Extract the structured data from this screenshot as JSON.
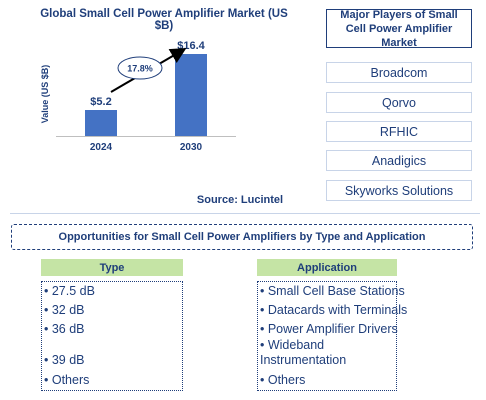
{
  "chart_data": {
    "type": "bar",
    "title": "Global Small Cell Power Amplifier Market (US $B)",
    "ylabel": "Value (US $B)",
    "categories": [
      "2024",
      "2030"
    ],
    "values": [
      5.2,
      16.4
    ],
    "value_labels": [
      "$5.2",
      "$16.4"
    ],
    "ylim": [
      0,
      20
    ],
    "bar_color": "#4472c4",
    "cagr_label": "17.8%",
    "source": "Source: Lucintel",
    "grid": false
  },
  "players": {
    "header": "Major Players of Small Cell Power Amplifier Market",
    "items": [
      "Broadcom",
      "Qorvo",
      "RFHIC",
      "Anadigics",
      "Skyworks Solutions"
    ]
  },
  "opportunities": {
    "header": "Opportunities for Small Cell Power Amplifiers by Type and Application",
    "type": {
      "header": "Type",
      "items": [
        "• 27.5 dB",
        "• 32 dB",
        "• 36 dB",
        "• 39 dB",
        "• Others"
      ]
    },
    "application": {
      "header": "Application",
      "items": [
        "• Small Cell Base Stations",
        "• Datacards with Terminals",
        "• Power Amplifier Drivers",
        "• Wideband Instrumentation",
        "• Others"
      ]
    }
  },
  "colors": {
    "brand": "#1f3e7a",
    "bar": "#4472c4",
    "header_fill": "#c5e4a5",
    "border_light": "#c8d4e8"
  }
}
